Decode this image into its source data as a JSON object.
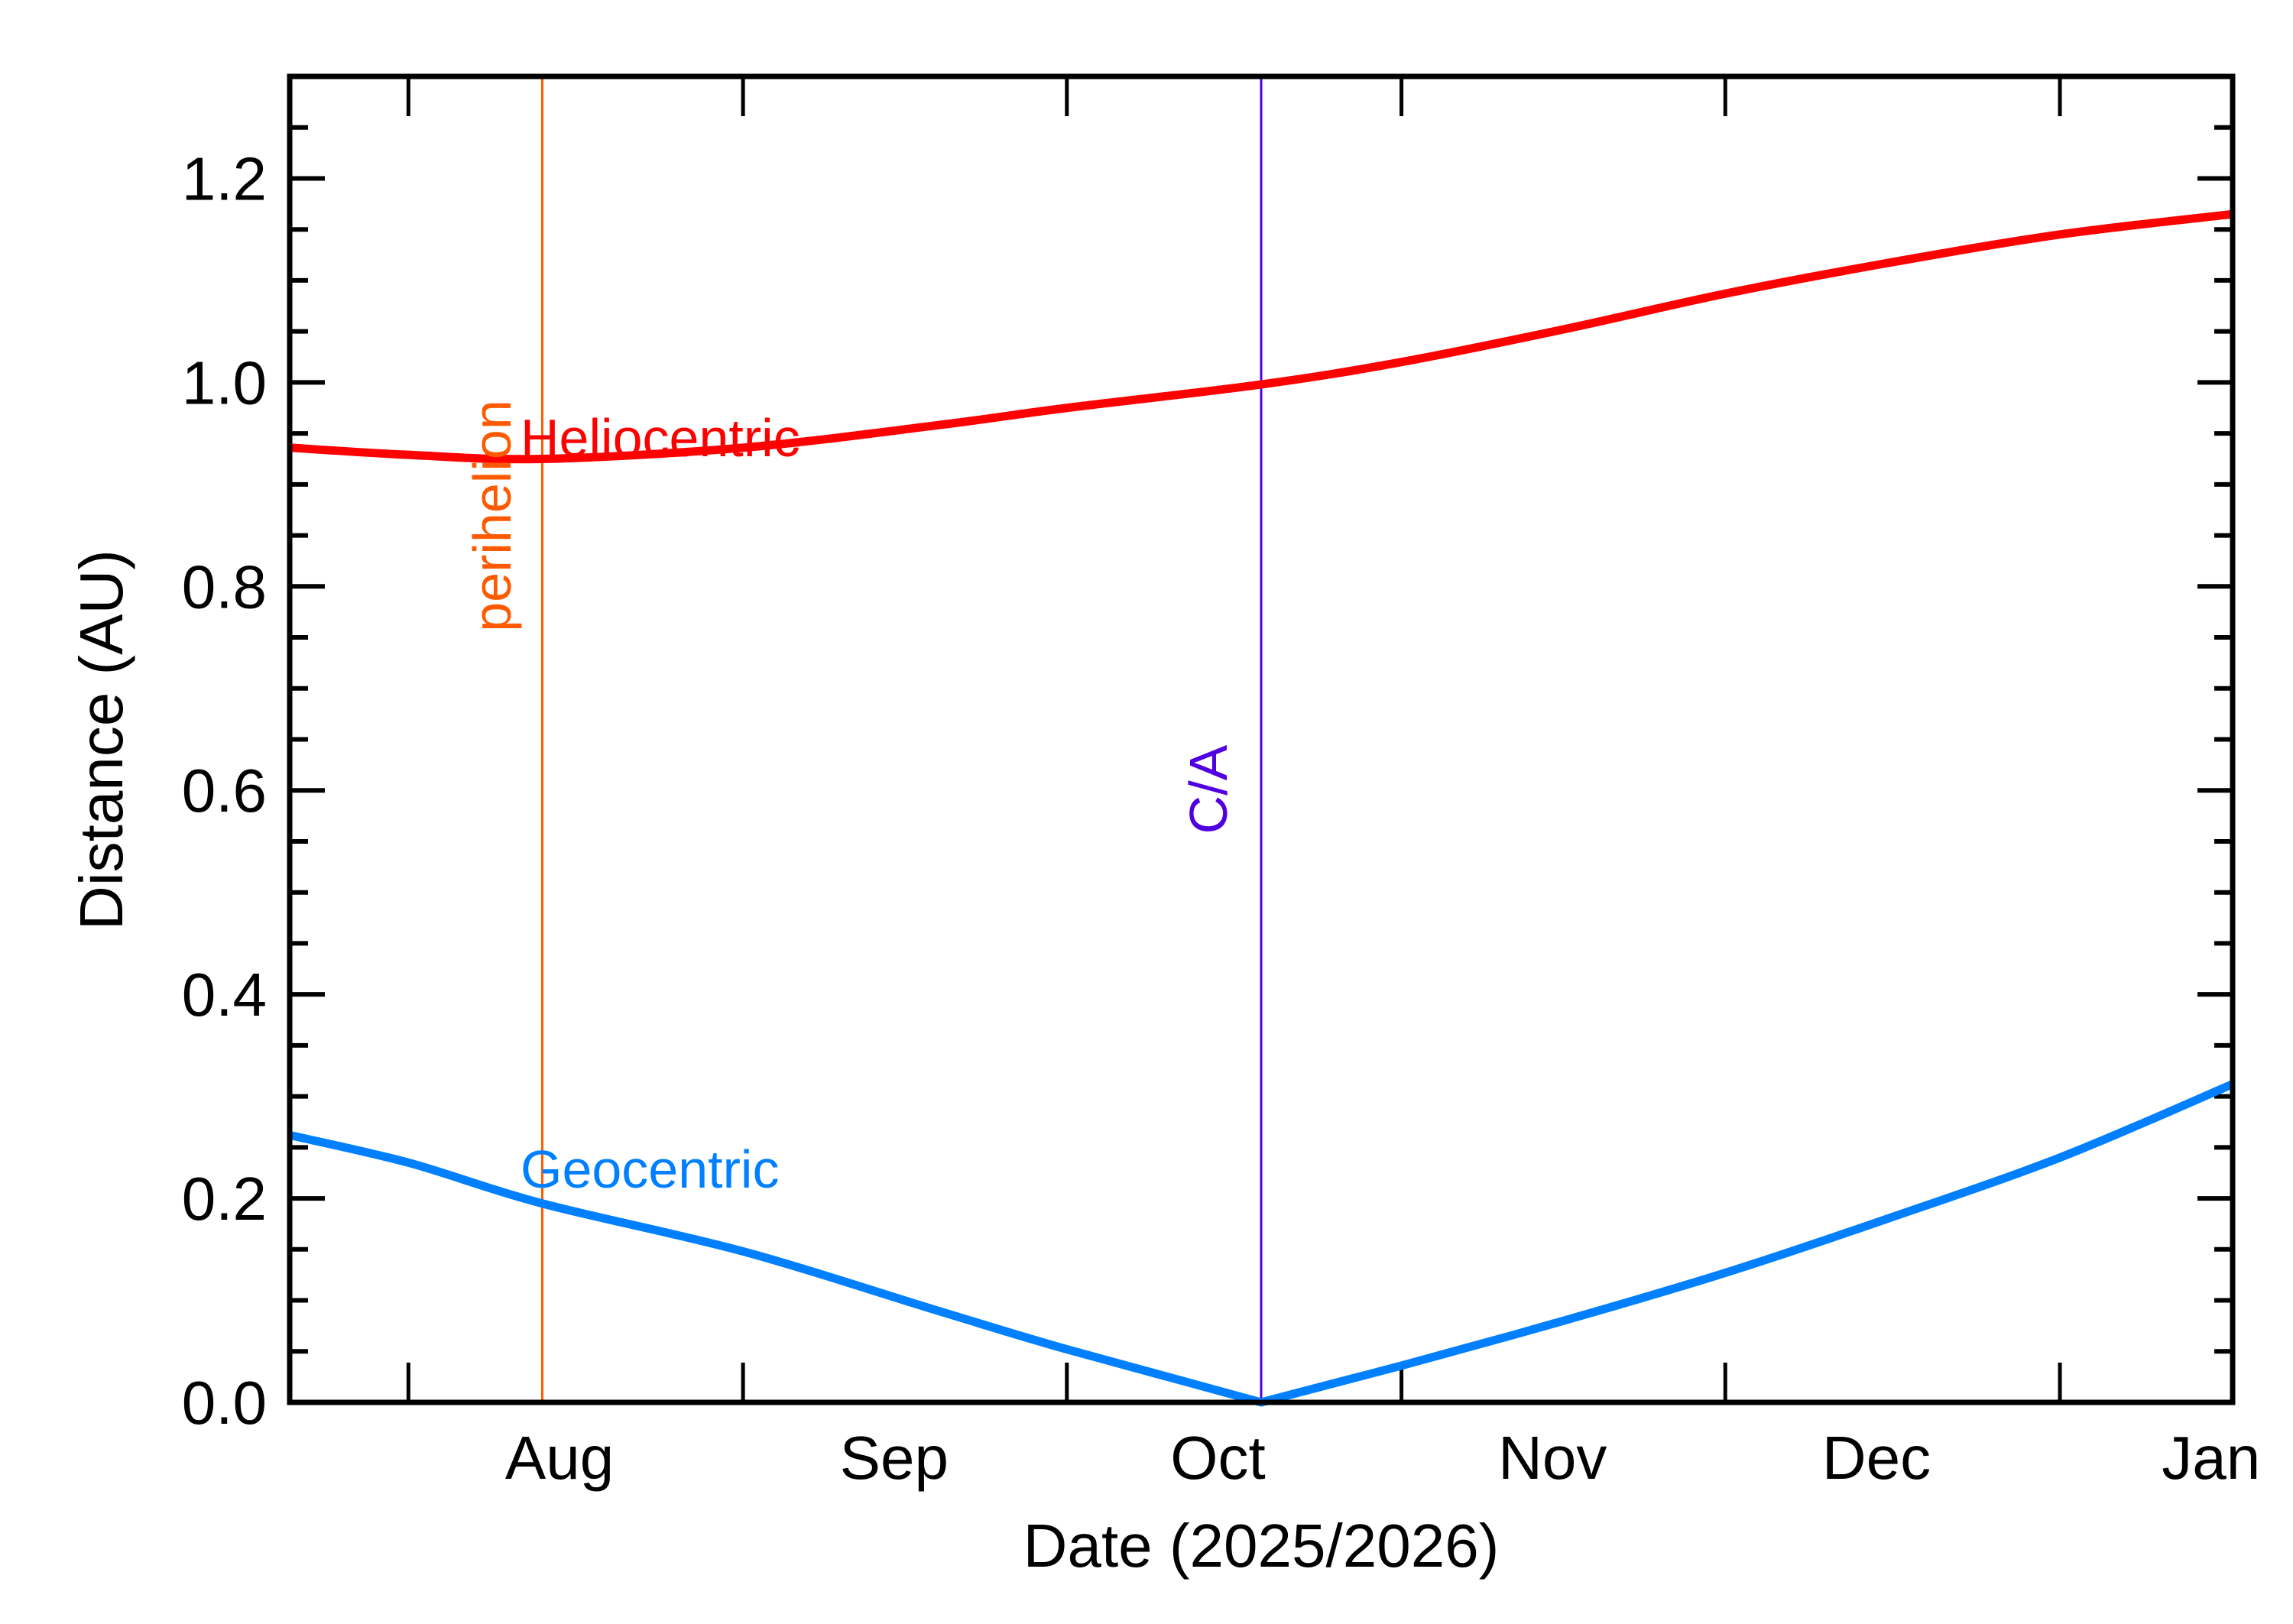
{
  "chart_data": {
    "type": "line",
    "title": "",
    "xlabel": "Date (2025/2026)",
    "ylabel": "Distance (AU)",
    "x_units": "days since 2025-07-21",
    "xlim": [
      0,
      180
    ],
    "ylim": [
      0,
      1.3
    ],
    "yticks": [
      {
        "value": 0.0,
        "label": "0.0"
      },
      {
        "value": 0.2,
        "label": "0.2"
      },
      {
        "value": 0.4,
        "label": "0.4"
      },
      {
        "value": 0.6,
        "label": "0.6"
      },
      {
        "value": 0.8,
        "label": "0.8"
      },
      {
        "value": 1.0,
        "label": "1.0"
      },
      {
        "value": 1.2,
        "label": "1.2"
      }
    ],
    "y_minor_step": 0.05,
    "month_starts": [
      11,
      42,
      72,
      103,
      133,
      164
    ],
    "xtick_labels": [
      {
        "value": 25,
        "label": "Aug"
      },
      {
        "value": 56,
        "label": "Sep"
      },
      {
        "value": 86,
        "label": "Oct"
      },
      {
        "value": 117,
        "label": "Nov"
      },
      {
        "value": 147,
        "label": "Dec"
      },
      {
        "value": 178,
        "label": "Jan"
      }
    ],
    "series": [
      {
        "name": "Heliocentric",
        "color": "#ff0000",
        "x": [
          0,
          11,
          23.4,
          42,
          60,
          72,
          90,
          103,
          118,
          133,
          148,
          164,
          180
        ],
        "y": [
          0.936,
          0.929,
          0.925,
          0.936,
          0.958,
          0.975,
          0.998,
          1.02,
          1.052,
          1.087,
          1.117,
          1.145,
          1.165
        ]
      },
      {
        "name": "Geocentric",
        "color": "#0080ff",
        "x": [
          0,
          11,
          23.4,
          42,
          60,
          72,
          90,
          103,
          118,
          133,
          148,
          164,
          180
        ],
        "y": [
          0.262,
          0.235,
          0.195,
          0.148,
          0.09,
          0.052,
          0.0,
          0.036,
          0.08,
          0.127,
          0.18,
          0.24,
          0.312
        ]
      }
    ],
    "annotations": [
      {
        "text": "perihelion",
        "x": 23.4,
        "color": "#ff5a00",
        "type": "vline"
      },
      {
        "text": "C/A",
        "x": 90,
        "color": "#5000e0",
        "type": "vline"
      }
    ],
    "legend_labels": {
      "heliocentric": "Heliocentric",
      "geocentric": "Geocentric"
    },
    "grid": false
  }
}
